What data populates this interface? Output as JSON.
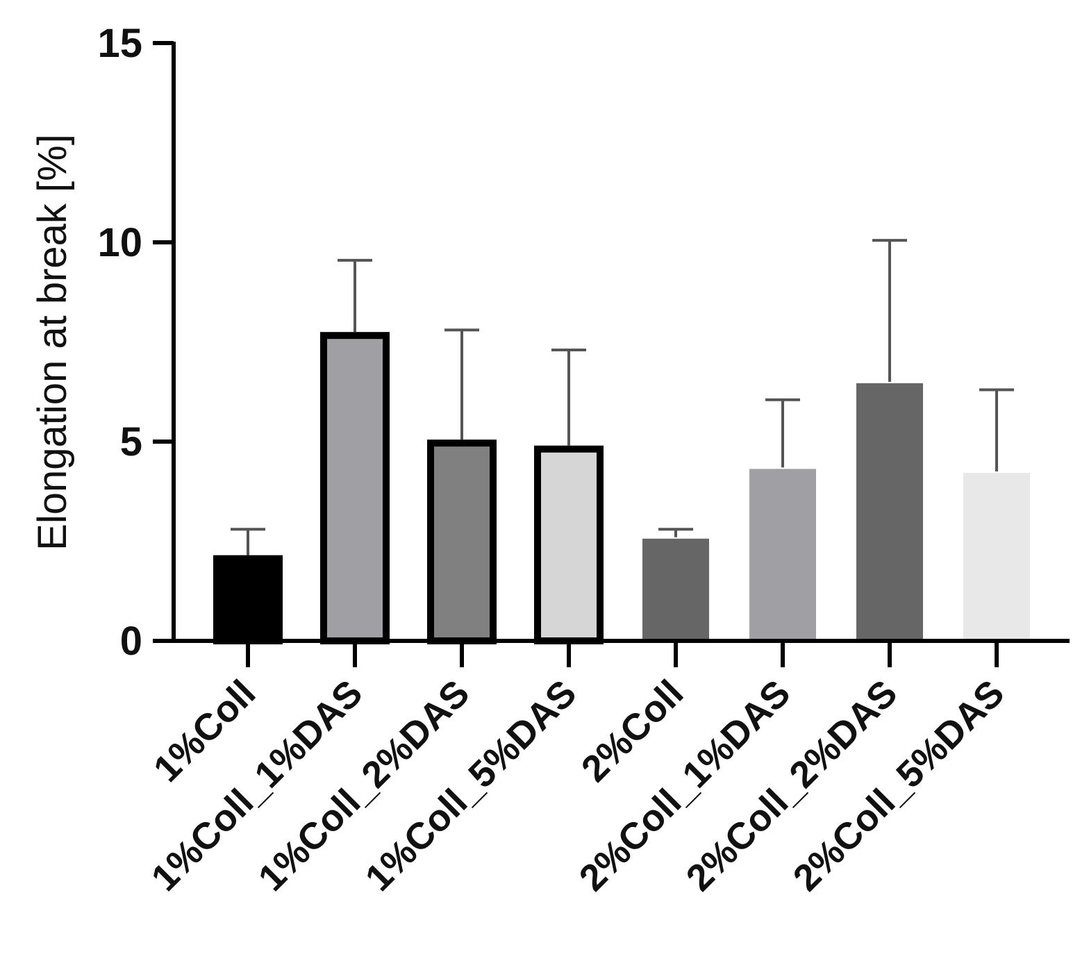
{
  "chart_data": {
    "type": "bar",
    "title": "",
    "xlabel": "",
    "ylabel": "Elongation at break [%]",
    "ylim": [
      0,
      15
    ],
    "yticks": [
      0,
      5,
      10,
      15
    ],
    "grid": false,
    "categories": [
      "1%Coll",
      "1%Coll_1%DAS",
      "1%Coll_2%DAS",
      "1%Coll_5%DAS",
      "2%Coll",
      "2%Coll_1%DAS",
      "2%Coll_2%DAS",
      "2%Coll_5%DAS"
    ],
    "values": [
      2.15,
      7.75,
      5.05,
      4.9,
      2.6,
      4.35,
      6.5,
      4.25
    ],
    "errors": [
      0.65,
      1.8,
      2.75,
      2.4,
      0.2,
      1.7,
      3.55,
      2.05
    ],
    "bar_fills": [
      "#000000",
      "#a0a0a4",
      "#808080",
      "#d6d6d6",
      "#666666",
      "#a0a0a4",
      "#666666",
      "#e8e8e8"
    ],
    "bar_outlined": [
      true,
      true,
      true,
      true,
      false,
      false,
      false,
      false
    ],
    "outline_color": "#000000",
    "error_bar_color": "#555555",
    "axis_color": "#000000"
  }
}
